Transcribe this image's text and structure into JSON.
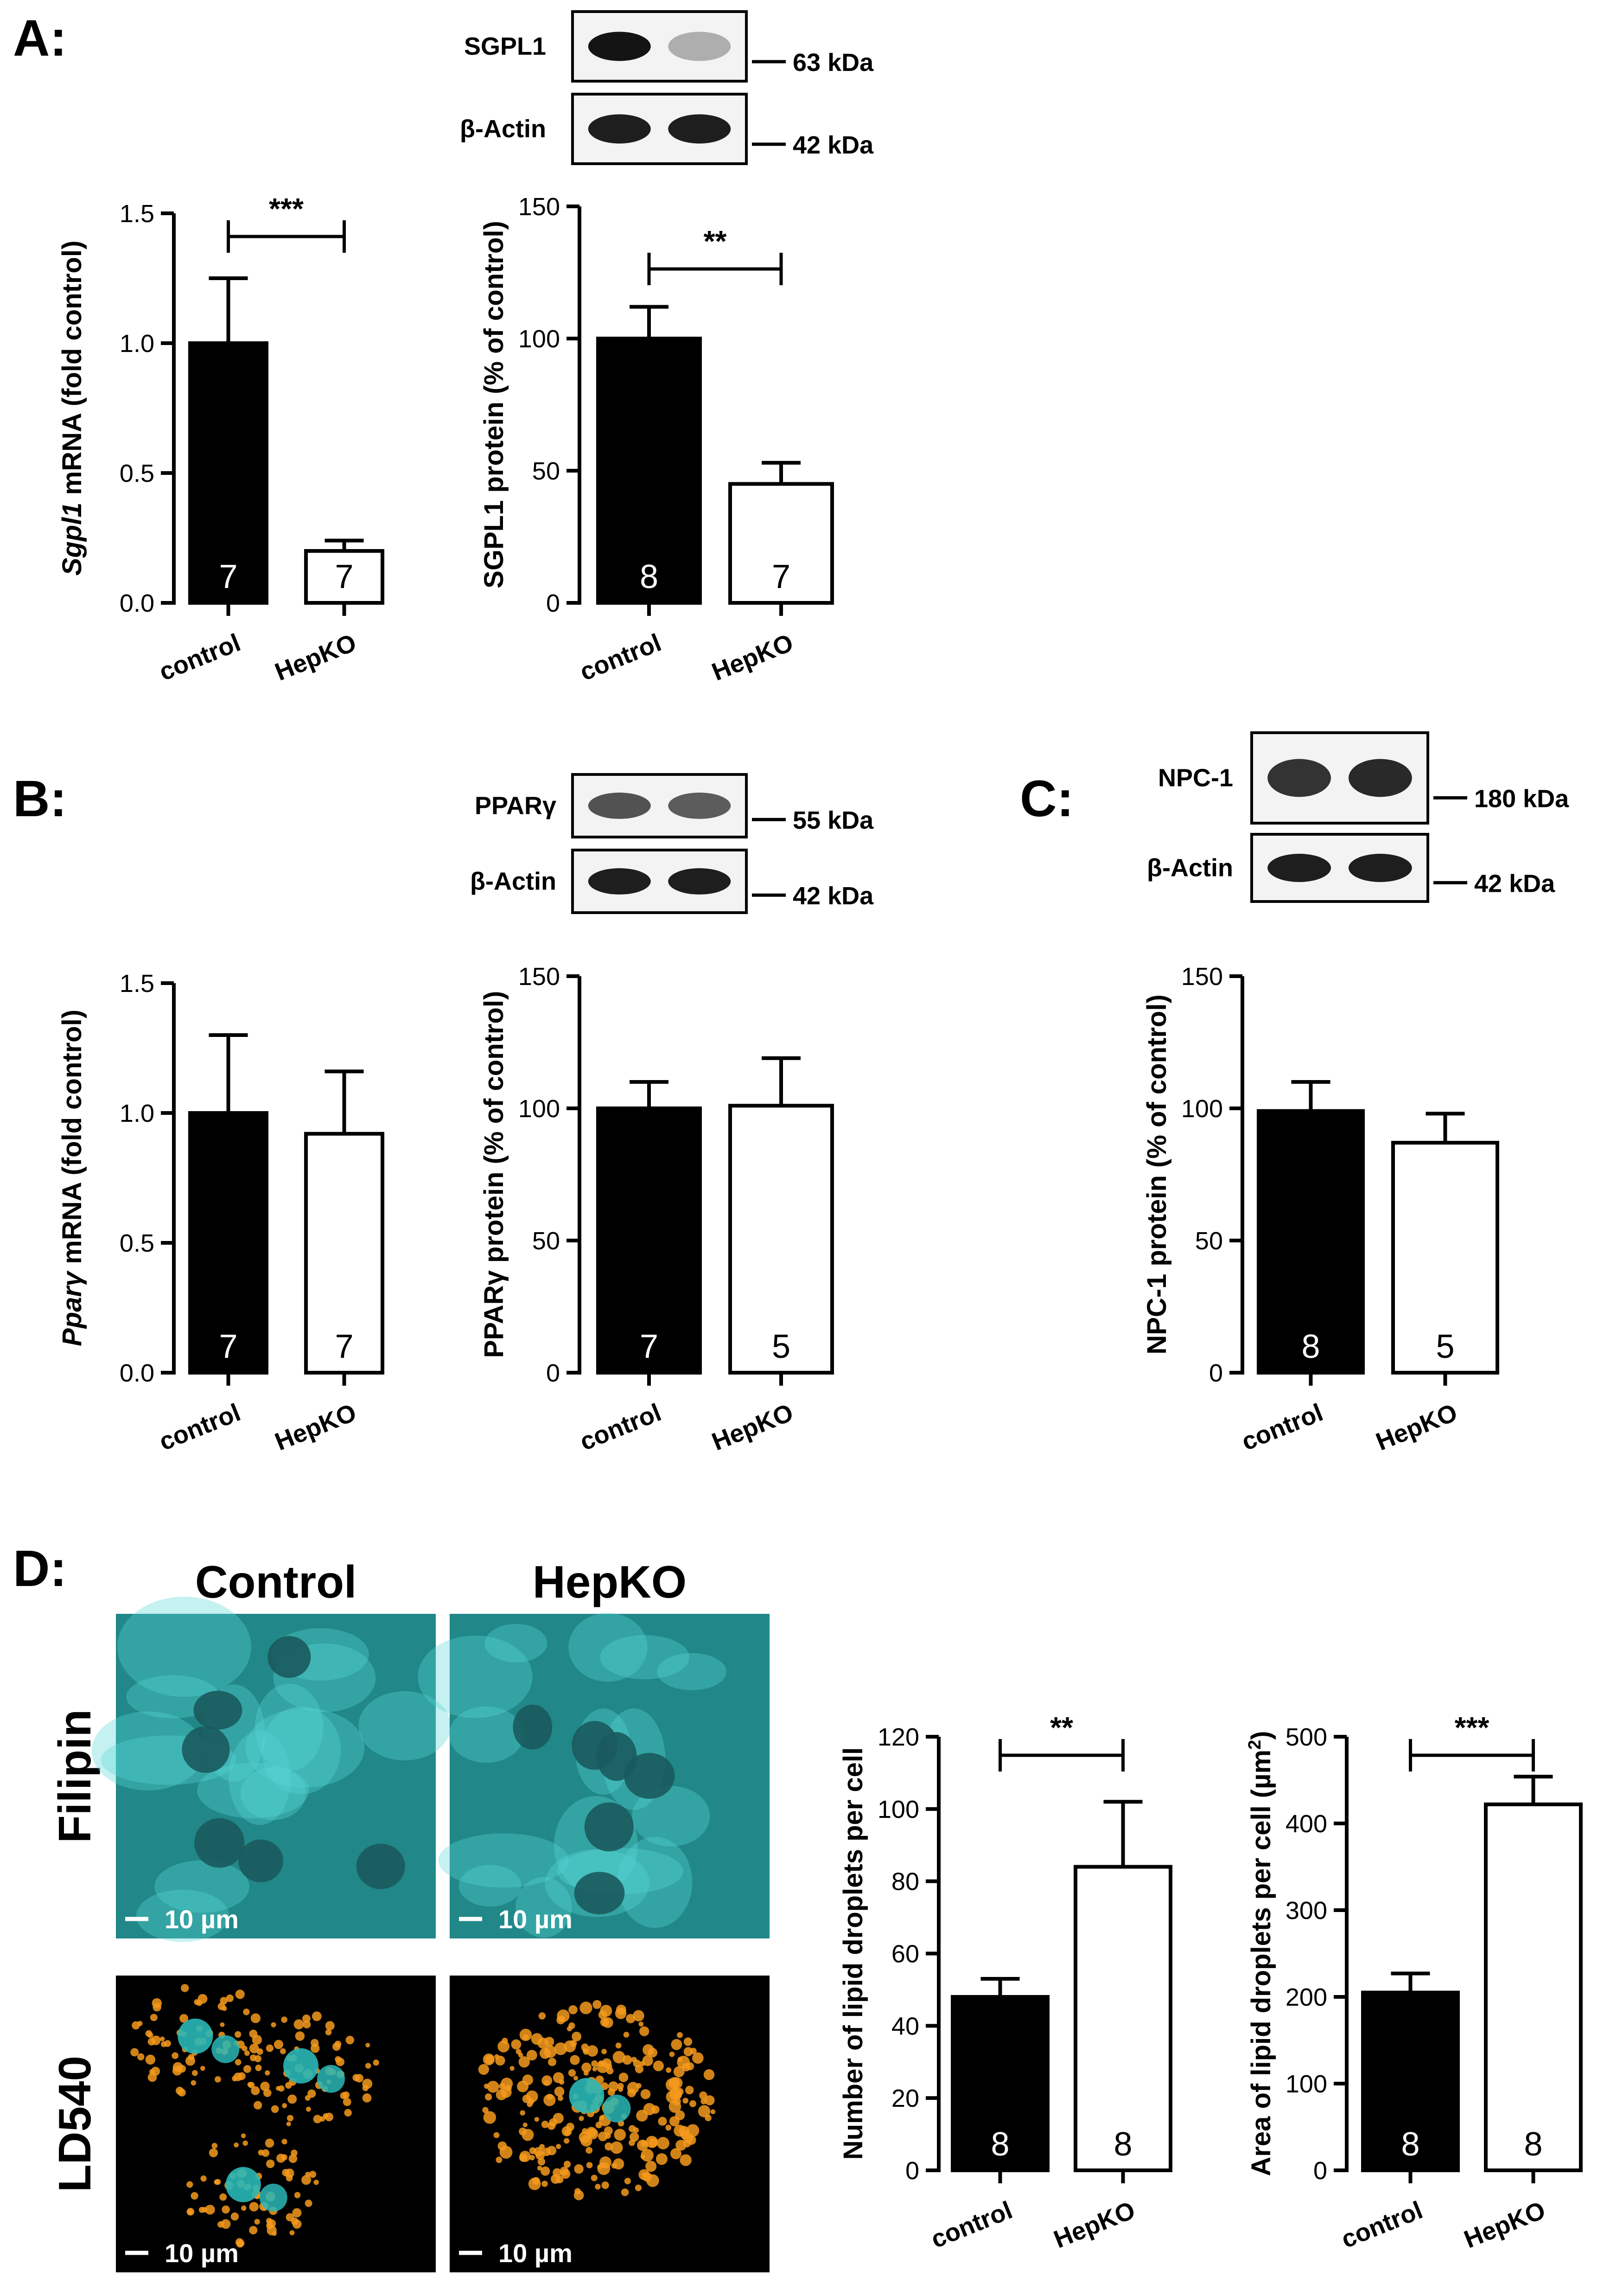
{
  "panel_labels": [
    "A:",
    "B:",
    "C:",
    "D:"
  ],
  "blots": [
    {
      "id": "A",
      "bands": [
        {
          "label": "SGPL1",
          "kda": "63 kDa",
          "intensity": [
            1.0,
            0.25
          ]
        },
        {
          "label": "β-Actin",
          "kda": "42 kDa",
          "intensity": [
            0.95,
            0.95
          ]
        }
      ]
    },
    {
      "id": "B",
      "bands": [
        {
          "label": "PPARγ",
          "kda": "55 kDa",
          "intensity": [
            0.7,
            0.65
          ]
        },
        {
          "label": "β-Actin",
          "kda": "42 kDa",
          "intensity": [
            0.95,
            0.95
          ]
        }
      ]
    },
    {
      "id": "C",
      "bands": [
        {
          "label": "NPC-1",
          "kda": "180 kDa",
          "intensity": [
            0.85,
            0.9
          ]
        },
        {
          "label": "β-Actin",
          "kda": "42 kDa",
          "intensity": [
            0.95,
            0.95
          ]
        }
      ]
    }
  ],
  "chart_data": [
    {
      "id": "A1",
      "type": "bar",
      "categories": [
        "control",
        "HepKO"
      ],
      "values": [
        1.0,
        0.2
      ],
      "errors": [
        0.25,
        0.04
      ],
      "n": [
        "7",
        "7"
      ],
      "ylabel_italic": "Sgpl1",
      "ylabel_rest": " mRNA (fold control)",
      "ylim": [
        0,
        1.5
      ],
      "yticks": [
        "0.0",
        "0.5",
        "1.0",
        "1.5"
      ],
      "significance": "***"
    },
    {
      "id": "A2",
      "type": "bar",
      "categories": [
        "control",
        "HepKO"
      ],
      "values": [
        100,
        45
      ],
      "errors": [
        12,
        8
      ],
      "n": [
        "8",
        "7"
      ],
      "ylabel_italic": "",
      "ylabel_rest": "SGPL1 protein (% of control)",
      "ylim": [
        0,
        150
      ],
      "yticks": [
        "0",
        "50",
        "100",
        "150"
      ],
      "significance": "**"
    },
    {
      "id": "B1",
      "type": "bar",
      "categories": [
        "control",
        "HepKO"
      ],
      "values": [
        1.0,
        0.92
      ],
      "errors": [
        0.3,
        0.24
      ],
      "n": [
        "7",
        "7"
      ],
      "ylabel_italic": "Pparγ",
      "ylabel_rest": " mRNA (fold control)",
      "ylim": [
        0,
        1.5
      ],
      "yticks": [
        "0.0",
        "0.5",
        "1.0",
        "1.5"
      ],
      "significance": ""
    },
    {
      "id": "B2",
      "type": "bar",
      "categories": [
        "control",
        "HepKO"
      ],
      "values": [
        100,
        101
      ],
      "errors": [
        10,
        18
      ],
      "n": [
        "7",
        "5"
      ],
      "ylabel_italic": "",
      "ylabel_rest": "PPARγ protein (% of control)",
      "ylim": [
        0,
        150
      ],
      "yticks": [
        "0",
        "50",
        "100",
        "150"
      ],
      "significance": ""
    },
    {
      "id": "C1",
      "type": "bar",
      "categories": [
        "control",
        "HepKO"
      ],
      "values": [
        99,
        87
      ],
      "errors": [
        11,
        11
      ],
      "n": [
        "8",
        "5"
      ],
      "ylabel_italic": "",
      "ylabel_rest": "NPC-1 protein (% of control)",
      "ylim": [
        0,
        150
      ],
      "yticks": [
        "0",
        "50",
        "100",
        "150"
      ],
      "significance": ""
    },
    {
      "id": "D1",
      "type": "bar",
      "categories": [
        "control",
        "HepKO"
      ],
      "values": [
        48,
        84
      ],
      "errors": [
        5,
        18
      ],
      "n": [
        "8",
        "8"
      ],
      "ylabel_italic": "",
      "ylabel_rest": "Number of lipid droplets per cell",
      "ylim": [
        0,
        120
      ],
      "yticks": [
        "0",
        "20",
        "40",
        "60",
        "80",
        "100",
        "120"
      ],
      "significance": "**"
    },
    {
      "id": "D2",
      "type": "bar",
      "categories": [
        "control",
        "HepKO"
      ],
      "values": [
        205,
        422
      ],
      "errors": [
        22,
        32
      ],
      "n": [
        "8",
        "8"
      ],
      "ylabel_italic": "",
      "ylabel_rest": "Area of lipid droplets per cell (µm",
      "ylabel_sup": "2",
      "ylabel_end": ")",
      "ylim": [
        0,
        500
      ],
      "yticks": [
        "0",
        "100",
        "200",
        "300",
        "400",
        "500"
      ],
      "significance": "***"
    }
  ],
  "microscopy": {
    "columns": [
      "Control",
      "HepKO"
    ],
    "rows": [
      "Filipin",
      "LD540"
    ],
    "scale_bar": "10 µm",
    "colors": {
      "filipin": "#35c4c4",
      "ld540": "#f59a1c",
      "nucleus": "#2ab7b7"
    }
  }
}
